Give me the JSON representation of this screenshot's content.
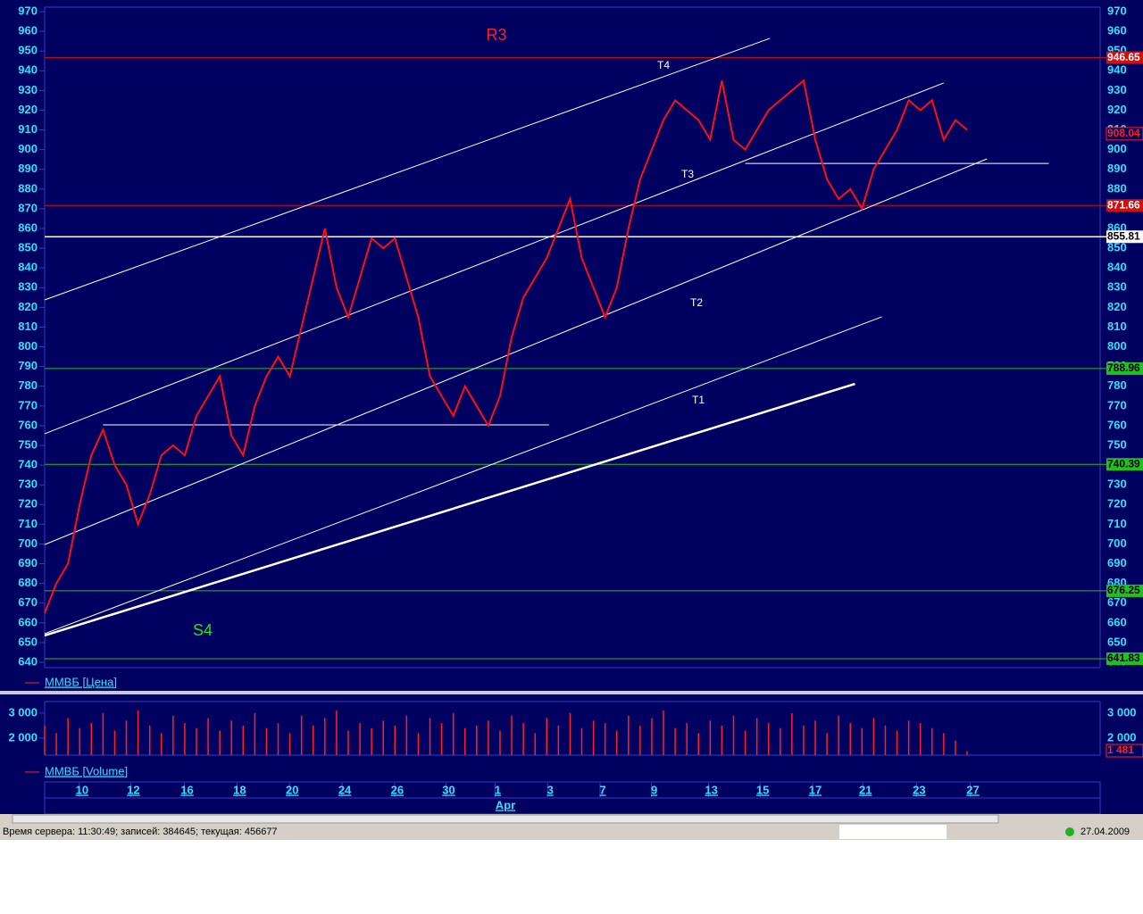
{
  "chart_data": [
    {
      "type": "line",
      "legend": "ММВБ [Цена]",
      "color": "#ff1010",
      "xlim": [
        0,
        79
      ],
      "ylim": [
        640,
        970
      ],
      "yticks": [
        640,
        650,
        660,
        670,
        680,
        690,
        700,
        710,
        720,
        730,
        740,
        750,
        760,
        770,
        780,
        790,
        800,
        810,
        820,
        830,
        840,
        850,
        860,
        870,
        880,
        890,
        900,
        910,
        920,
        930,
        940,
        950,
        960,
        970
      ],
      "values": [
        665,
        680,
        690,
        720,
        745,
        758,
        740,
        730,
        710,
        725,
        745,
        750,
        745,
        765,
        775,
        785,
        755,
        745,
        770,
        785,
        795,
        785,
        810,
        835,
        860,
        830,
        815,
        835,
        855,
        850,
        855,
        835,
        815,
        785,
        775,
        765,
        780,
        770,
        760,
        775,
        805,
        825,
        835,
        845,
        860,
        875,
        845,
        830,
        815,
        830,
        860,
        885,
        900,
        915,
        925,
        920,
        915,
        905,
        935,
        905,
        900,
        910,
        920,
        925,
        930,
        935,
        905,
        885,
        875,
        880,
        870,
        890,
        900,
        910,
        925,
        920,
        925,
        905,
        915,
        910
      ],
      "levels": [
        {
          "value": 946.65,
          "color": "#d01010",
          "text_color": "#ffffff"
        },
        {
          "value": 871.66,
          "color": "#d01010",
          "text_color": "#ffffff"
        },
        {
          "value": 855.81,
          "color": "#ffffff",
          "text_color": "#000000"
        },
        {
          "value": 788.96,
          "color": "#20c020",
          "text_color": "#000000"
        },
        {
          "value": 740.39,
          "color": "#20c020",
          "text_color": "#000000"
        },
        {
          "value": 676.25,
          "color": "#20c020",
          "text_color": "#000000"
        },
        {
          "value": 641.83,
          "color": "#20c020",
          "text_color": "#000000"
        }
      ],
      "last": {
        "value": 908.04,
        "color": "#ff2020"
      },
      "lines": [
        {
          "x": [
            0,
            62.1
          ],
          "y": [
            823.8,
            956.4
          ],
          "color": "#ffffff"
        },
        {
          "x": [
            0,
            77
          ],
          "y": [
            755.9,
            933.8
          ],
          "color": "#ffffff"
        },
        {
          "x": [
            0,
            80.7
          ],
          "y": [
            699.7,
            895.3
          ],
          "color": "#ffffff"
        },
        {
          "x": [
            0,
            71.7
          ],
          "y": [
            654.5,
            815.2
          ],
          "color": "#ffffff"
        },
        {
          "x": [
            0,
            69.4
          ],
          "y": [
            653.6,
            781.2
          ],
          "color": "#ffffff",
          "width": 2.5
        },
        {
          "x": [
            5,
            43.2
          ],
          "y": [
            760.4,
            760.4
          ],
          "color": "#ffffff"
        },
        {
          "x": [
            60,
            86
          ],
          "y": [
            893,
            893
          ],
          "color": "#ffffff"
        }
      ],
      "annotations": [
        "R3",
        "S4",
        "T4",
        "T3",
        "T2",
        "T1"
      ],
      "xticks": [
        {
          "value": 3.2,
          "label": "10"
        },
        {
          "value": 7.6,
          "label": "12"
        },
        {
          "value": 12.2,
          "label": "16"
        },
        {
          "value": 16.7,
          "label": "18"
        },
        {
          "value": 21.2,
          "label": "20"
        },
        {
          "value": 25.7,
          "label": "24"
        },
        {
          "value": 30.2,
          "label": "26"
        },
        {
          "value": 34.6,
          "label": "30"
        },
        {
          "value": 38.8,
          "label": "1"
        },
        {
          "value": 43.3,
          "label": "3"
        },
        {
          "value": 47.8,
          "label": "7"
        },
        {
          "value": 52.2,
          "label": "9"
        },
        {
          "value": 57.1,
          "label": "13"
        },
        {
          "value": 61.5,
          "label": "15"
        },
        {
          "value": 66,
          "label": "17"
        },
        {
          "value": 70.3,
          "label": "21"
        },
        {
          "value": 74.9,
          "label": "23"
        },
        {
          "value": 79.5,
          "label": "27"
        }
      ],
      "month": "Apr"
    },
    {
      "type": "bar",
      "legend": "ММВБ [Volume]",
      "color": "#ff2020",
      "xlim": [
        0,
        79
      ],
      "ylim": [
        1320,
        3460
      ],
      "yticks": [
        {
          "value": 2000,
          "label": "2 000"
        },
        {
          "value": 3000,
          "label": "3 000"
        }
      ],
      "values": [
        2500,
        2200,
        2800,
        2400,
        2600,
        3000,
        2300,
        2700,
        3100,
        2500,
        2200,
        2900,
        2600,
        2400,
        2800,
        2300,
        2700,
        2500,
        3000,
        2400,
        2600,
        2200,
        2900,
        2500,
        2800,
        3100,
        2300,
        2600,
        2400,
        2700,
        2500,
        2900,
        2200,
        2800,
        2600,
        3000,
        2400,
        2500,
        2700,
        2300,
        2900,
        2600,
        2200,
        2800,
        2500,
        3000,
        2400,
        2700,
        2600,
        2300,
        2900,
        2500,
        2800,
        3100,
        2400,
        2600,
        2200,
        2700,
        2500,
        2900,
        2300,
        2800,
        2600,
        2400,
        3000,
        2500,
        2700,
        2200,
        2900,
        2600,
        2400,
        2800,
        2500,
        2300,
        2700,
        2600,
        2400,
        2200,
        1900,
        1481
      ],
      "last": {
        "value": 1481,
        "label": "1 481",
        "color": "#ff2020"
      }
    }
  ],
  "status": {
    "server": "Время сервера: 11:30:49; записей: 384645; текущая: 456677",
    "date": "27.04.2009"
  }
}
